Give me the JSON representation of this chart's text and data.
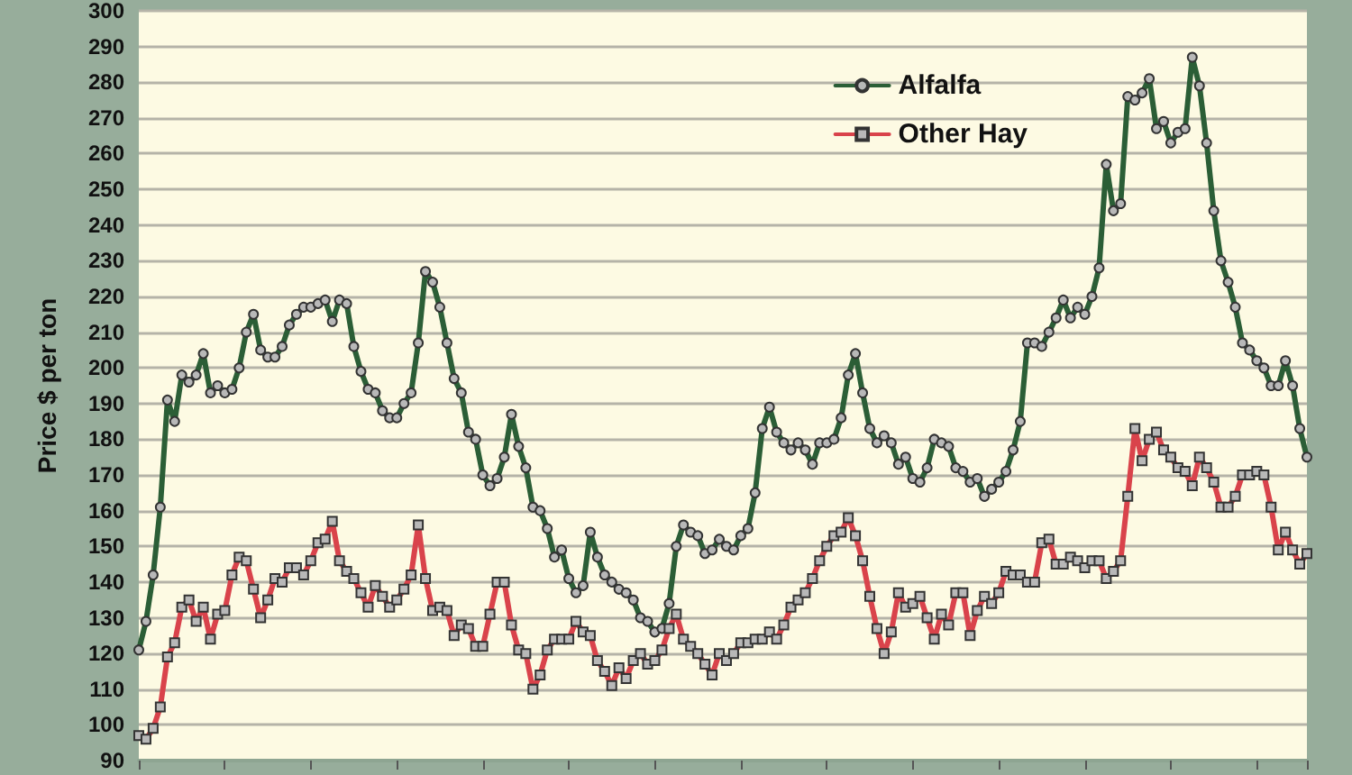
{
  "chart_data": {
    "type": "line",
    "ylabel": "Price $ per ton",
    "categories": [
      null,
      null,
      null,
      null,
      null,
      null,
      null,
      null,
      null,
      null,
      null,
      null,
      null,
      null,
      null,
      null,
      null,
      null,
      null,
      null,
      null,
      null,
      null,
      null,
      null,
      null,
      null,
      null,
      null,
      null,
      null,
      null,
      null,
      null,
      null,
      null,
      null,
      null,
      null,
      null,
      null,
      null,
      null,
      null,
      null,
      null,
      null,
      null,
      null,
      null,
      null,
      null,
      null,
      null,
      null,
      null,
      null,
      null,
      null,
      null,
      null,
      null,
      null,
      null,
      null,
      null,
      null,
      null,
      null,
      null,
      null,
      null,
      null,
      null,
      null,
      null,
      null,
      null,
      null,
      null,
      null,
      null,
      null,
      null,
      null,
      null,
      null,
      null,
      null,
      null,
      null,
      null,
      null,
      null,
      null,
      null,
      null,
      null,
      null,
      null,
      null,
      null,
      null,
      null,
      null,
      null,
      null,
      null,
      null,
      null,
      null,
      null,
      null,
      null,
      null,
      null,
      null,
      null,
      null,
      null,
      null,
      null,
      null,
      null,
      null,
      null,
      null,
      null,
      null,
      null,
      null,
      null,
      null,
      null,
      null,
      null,
      null,
      null,
      null,
      null,
      null,
      null,
      null,
      null,
      null,
      null,
      null,
      null,
      null,
      null,
      null,
      null,
      null,
      null,
      null,
      null,
      null,
      null,
      null,
      null,
      null,
      null,
      null,
      null
    ],
    "series": [
      {
        "name": "Alfalfa",
        "color": "#2b5e36",
        "marker": "circle",
        "values": [
          121,
          129,
          142,
          161,
          191,
          185,
          198,
          196,
          198,
          204,
          193,
          195,
          193,
          194,
          200,
          210,
          215,
          205,
          203,
          203,
          206,
          212,
          215,
          217,
          217,
          218,
          219,
          213,
          219,
          218,
          206,
          199,
          194,
          193,
          188,
          186,
          186,
          190,
          193,
          207,
          227,
          224,
          217,
          207,
          197,
          193,
          182,
          180,
          170,
          167,
          169,
          175,
          187,
          178,
          172,
          161,
          160,
          155,
          147,
          149,
          141,
          137,
          139,
          154,
          147,
          142,
          140,
          138,
          137,
          135,
          130,
          129,
          126,
          127,
          134,
          150,
          156,
          154,
          153,
          148,
          149,
          152,
          150,
          149,
          153,
          155,
          165,
          183,
          189,
          182,
          179,
          177,
          179,
          177,
          173,
          179,
          179,
          180,
          186,
          198,
          204,
          193,
          183,
          179,
          181,
          179,
          173,
          175,
          169,
          168,
          172,
          180,
          179,
          178,
          172,
          171,
          168,
          169,
          164,
          166,
          168,
          171,
          177,
          185,
          207,
          207,
          206,
          210,
          214,
          219,
          214,
          217,
          215,
          220,
          228,
          257,
          244,
          246,
          276,
          275,
          277,
          281,
          267,
          269,
          263,
          266,
          267,
          287,
          279,
          263,
          244,
          230,
          224,
          217,
          207,
          205,
          202,
          200,
          195,
          195,
          202,
          195,
          183,
          175
        ]
      },
      {
        "name": "Other Hay",
        "color": "#d9434b",
        "marker": "square",
        "values": [
          97,
          96,
          99,
          105,
          119,
          123,
          133,
          135,
          129,
          133,
          124,
          131,
          132,
          142,
          147,
          146,
          138,
          130,
          135,
          141,
          140,
          144,
          144,
          142,
          146,
          151,
          152,
          157,
          146,
          143,
          141,
          137,
          133,
          139,
          136,
          133,
          135,
          138,
          142,
          156,
          141,
          132,
          133,
          132,
          125,
          128,
          127,
          122,
          122,
          131,
          140,
          140,
          128,
          121,
          120,
          110,
          114,
          121,
          124,
          124,
          124,
          129,
          126,
          125,
          118,
          115,
          111,
          116,
          113,
          118,
          120,
          117,
          118,
          121,
          127,
          131,
          124,
          122,
          120,
          117,
          114,
          120,
          118,
          120,
          123,
          123,
          124,
          124,
          126,
          124,
          128,
          133,
          135,
          137,
          141,
          146,
          150,
          153,
          154,
          158,
          153,
          146,
          136,
          127,
          120,
          126,
          137,
          133,
          134,
          136,
          130,
          124,
          131,
          128,
          137,
          137,
          125,
          132,
          136,
          134,
          137,
          143,
          142,
          142,
          140,
          140,
          151,
          152,
          145,
          145,
          147,
          146,
          144,
          146,
          146,
          141,
          143,
          146,
          164,
          183,
          174,
          180,
          182,
          177,
          175,
          172,
          171,
          167,
          175,
          172,
          168,
          161,
          161,
          164,
          170,
          170,
          171,
          170,
          161,
          149,
          154,
          149,
          145,
          148
        ]
      }
    ],
    "ylim": [
      90,
      300
    ],
    "yticks": [
      90,
      100,
      110,
      120,
      130,
      140,
      150,
      160,
      170,
      180,
      190,
      200,
      210,
      220,
      230,
      240,
      250,
      260,
      270,
      280,
      290,
      300
    ],
    "grid": "y",
    "legend": "top right",
    "line_style": "solid"
  }
}
